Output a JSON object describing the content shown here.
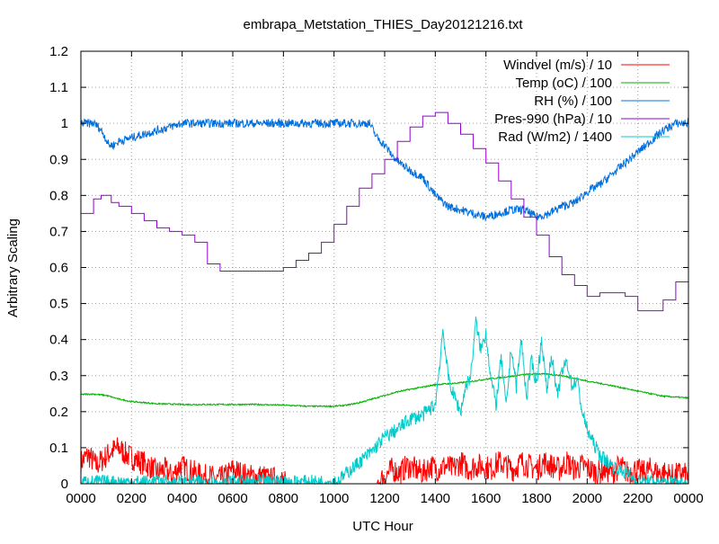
{
  "chart_data": {
    "type": "line",
    "title": "embrapa_Metstation_THIES_Day20121216.txt",
    "xlabel": "UTC Hour",
    "ylabel": "Arbitrary Scaling",
    "xlim": [
      0,
      24
    ],
    "ylim": [
      0,
      1.2
    ],
    "grid": true,
    "legend_position": "top-right",
    "x_ticks": [
      {
        "v": 0,
        "label": "0000"
      },
      {
        "v": 2,
        "label": "0200"
      },
      {
        "v": 4,
        "label": "0400"
      },
      {
        "v": 6,
        "label": "0600"
      },
      {
        "v": 8,
        "label": "0800"
      },
      {
        "v": 10,
        "label": "1000"
      },
      {
        "v": 12,
        "label": "1200"
      },
      {
        "v": 14,
        "label": "1400"
      },
      {
        "v": 16,
        "label": "1600"
      },
      {
        "v": 18,
        "label": "1800"
      },
      {
        "v": 20,
        "label": "2000"
      },
      {
        "v": 22,
        "label": "2200"
      },
      {
        "v": 24,
        "label": "0000"
      }
    ],
    "y_ticks": [
      {
        "v": 0,
        "label": "0"
      },
      {
        "v": 0.1,
        "label": "0.1"
      },
      {
        "v": 0.2,
        "label": "0.2"
      },
      {
        "v": 0.3,
        "label": "0.3"
      },
      {
        "v": 0.4,
        "label": "0.4"
      },
      {
        "v": 0.5,
        "label": "0.5"
      },
      {
        "v": 0.6,
        "label": "0.6"
      },
      {
        "v": 0.7,
        "label": "0.7"
      },
      {
        "v": 0.8,
        "label": "0.8"
      },
      {
        "v": 0.9,
        "label": "0.9"
      },
      {
        "v": 1,
        "label": "1"
      },
      {
        "v": 1.1,
        "label": "1.1"
      },
      {
        "v": 1.2,
        "label": "1.2"
      }
    ],
    "series": [
      {
        "name": "Windvel (m/s) / 10",
        "color": "#ff0000",
        "x": [
          0,
          0.3,
          0.6,
          0.9,
          1.2,
          1.5,
          1.8,
          2.1,
          2.4,
          2.7,
          3,
          3.3,
          3.6,
          3.9,
          4.2,
          4.5,
          4.8,
          5.1,
          5.4,
          5.7,
          6,
          6.3,
          6.6,
          6.9,
          7.2,
          7.5,
          7.8,
          8.1,
          8.4,
          8.7,
          9,
          9.3,
          9.6,
          9.9,
          10.2,
          10.5,
          10.8,
          11.1,
          11.4,
          11.7,
          12,
          12.3,
          12.6,
          12.9,
          13.2,
          13.5,
          13.8,
          14.1,
          14.4,
          14.7,
          15,
          15.3,
          15.6,
          15.9,
          16.2,
          16.5,
          16.8,
          17.1,
          17.4,
          17.7,
          18,
          18.3,
          18.6,
          18.9,
          19.2,
          19.5,
          19.8,
          20.1,
          20.4,
          20.7,
          21,
          21.3,
          21.6,
          21.9,
          22.2,
          22.5,
          22.8,
          23.1,
          23.4,
          23.7,
          24
        ],
        "y": [
          0.06,
          0.08,
          0.05,
          0.07,
          0.09,
          0.1,
          0.08,
          0.07,
          0.06,
          0.05,
          0.03,
          0.04,
          0.02,
          0.05,
          0.04,
          0.03,
          0.02,
          0.02,
          0.01,
          0.02,
          0.04,
          0.03,
          0.02,
          0.02,
          0.02,
          0.01,
          0.02,
          0.0,
          0.0,
          0.0,
          0.0,
          0.0,
          0.0,
          0.0,
          0.0,
          0.0,
          0.0,
          0.0,
          0.0,
          0.0,
          0.02,
          0.04,
          0.03,
          0.05,
          0.04,
          0.03,
          0.05,
          0.04,
          0.05,
          0.04,
          0.06,
          0.04,
          0.05,
          0.05,
          0.04,
          0.06,
          0.05,
          0.04,
          0.06,
          0.05,
          0.04,
          0.06,
          0.05,
          0.04,
          0.06,
          0.04,
          0.05,
          0.04,
          0.03,
          0.04,
          0.03,
          0.05,
          0.03,
          0.04,
          0.03,
          0.04,
          0.03,
          0.03,
          0.02,
          0.03,
          0.02
        ],
        "noise": 0.035
      },
      {
        "name": "Temp (oC) / 100",
        "color": "#00b000",
        "x": [
          0,
          0.5,
          1,
          1.5,
          2,
          3,
          4,
          5,
          6,
          7,
          8,
          9,
          10,
          10.5,
          11,
          11.5,
          12,
          12.5,
          13,
          13.5,
          14,
          15,
          16,
          17,
          17.5,
          18,
          18.5,
          19,
          20,
          21,
          22,
          23,
          24
        ],
        "y": [
          0.248,
          0.249,
          0.245,
          0.235,
          0.228,
          0.222,
          0.22,
          0.22,
          0.22,
          0.22,
          0.218,
          0.215,
          0.215,
          0.218,
          0.225,
          0.235,
          0.245,
          0.255,
          0.262,
          0.268,
          0.275,
          0.28,
          0.29,
          0.298,
          0.303,
          0.305,
          0.304,
          0.3,
          0.285,
          0.272,
          0.257,
          0.243,
          0.238
        ],
        "noise": 0.002
      },
      {
        "name": "RH (%) / 100",
        "color": "#0070e0",
        "x": [
          0,
          0.5,
          0.7,
          0.9,
          1.1,
          1.3,
          1.5,
          2,
          2.5,
          3,
          3.5,
          4,
          5,
          6,
          7,
          8,
          9,
          10,
          11,
          11.4,
          11.7,
          12,
          12.3,
          12.6,
          13,
          13.5,
          14,
          14.5,
          15,
          15.5,
          16,
          16.5,
          17,
          17.5,
          18,
          18.5,
          19,
          19.5,
          20,
          20.5,
          21,
          21.5,
          22,
          22.5,
          23,
          23.5,
          24
        ],
        "y": [
          1.0,
          1.0,
          0.99,
          0.97,
          0.94,
          0.94,
          0.95,
          0.96,
          0.97,
          0.98,
          0.99,
          1.0,
          1.0,
          1.0,
          1.0,
          1.0,
          1.0,
          1.0,
          1.0,
          1.0,
          0.96,
          0.94,
          0.91,
          0.89,
          0.87,
          0.85,
          0.8,
          0.77,
          0.76,
          0.75,
          0.74,
          0.75,
          0.76,
          0.76,
          0.74,
          0.75,
          0.77,
          0.78,
          0.81,
          0.83,
          0.86,
          0.89,
          0.92,
          0.95,
          0.98,
          1.0,
          1.0
        ],
        "noise": 0.012
      },
      {
        "name": "Pres-990 (hPa) / 10",
        "color": "#9400d3",
        "x": [
          0,
          0.5,
          0.8,
          1.2,
          1.5,
          2,
          2.5,
          3,
          3.5,
          4,
          4.5,
          5,
          5.5,
          6,
          6.5,
          7,
          7.5,
          8,
          8.5,
          9,
          9.5,
          10,
          10.5,
          11,
          11.5,
          12,
          12.5,
          13,
          13.5,
          14,
          14.5,
          15,
          15.5,
          16,
          16.5,
          17,
          17.5,
          18,
          18.5,
          19,
          19.5,
          20,
          20.5,
          21,
          21.5,
          22,
          22.5,
          23,
          23.5,
          24
        ],
        "y": [
          0.75,
          0.79,
          0.8,
          0.78,
          0.77,
          0.75,
          0.73,
          0.71,
          0.7,
          0.69,
          0.67,
          0.61,
          0.59,
          0.59,
          0.59,
          0.59,
          0.59,
          0.6,
          0.62,
          0.64,
          0.67,
          0.72,
          0.77,
          0.82,
          0.86,
          0.9,
          0.95,
          0.99,
          1.02,
          1.03,
          1.0,
          0.97,
          0.93,
          0.89,
          0.84,
          0.79,
          0.74,
          0.69,
          0.63,
          0.58,
          0.55,
          0.52,
          0.53,
          0.53,
          0.52,
          0.48,
          0.48,
          0.51,
          0.56,
          0.64
        ],
        "step": true
      },
      {
        "name": "Rad (W/m2) / 1400",
        "color": "#00cccc",
        "x": [
          0,
          6,
          10,
          10.2,
          10.5,
          11,
          11.5,
          12,
          12.5,
          13,
          13.5,
          14,
          14.2,
          14.3,
          14.5,
          14.7,
          15,
          15.2,
          15.4,
          15.6,
          15.8,
          16,
          16.2,
          16.4,
          16.6,
          16.8,
          17,
          17.2,
          17.4,
          17.6,
          17.8,
          18,
          18.2,
          18.4,
          18.6,
          18.8,
          19,
          19.2,
          19.4,
          19.6,
          19.8,
          20,
          20.2,
          20.5,
          21,
          21.5,
          22,
          22.5,
          23,
          24
        ],
        "y": [
          0.005,
          0.005,
          0.005,
          0.01,
          0.03,
          0.06,
          0.09,
          0.13,
          0.15,
          0.18,
          0.19,
          0.22,
          0.35,
          0.43,
          0.3,
          0.25,
          0.2,
          0.27,
          0.3,
          0.45,
          0.37,
          0.42,
          0.29,
          0.22,
          0.35,
          0.21,
          0.38,
          0.27,
          0.4,
          0.24,
          0.34,
          0.28,
          0.4,
          0.26,
          0.36,
          0.24,
          0.31,
          0.34,
          0.27,
          0.29,
          0.2,
          0.15,
          0.12,
          0.08,
          0.05,
          0.03,
          0.01,
          0.005,
          0.003,
          0.003
        ],
        "noise": 0.02
      }
    ]
  }
}
